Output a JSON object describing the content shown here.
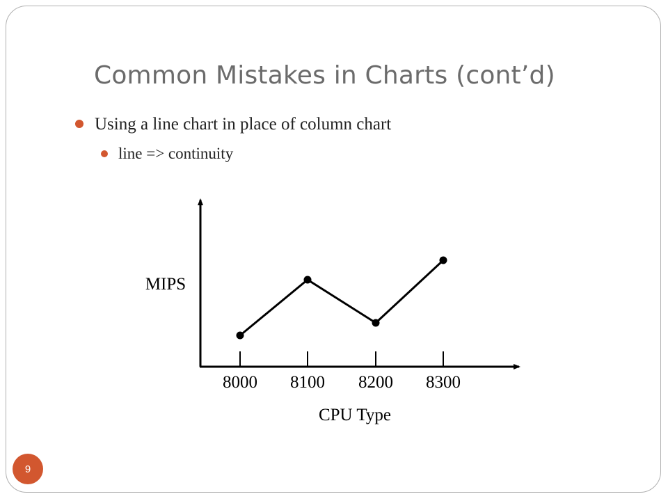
{
  "slide": {
    "title": "Common Mistakes in Charts (cont’d)",
    "bullets": [
      {
        "text": "Using a line chart in place of column chart",
        "level": 1
      },
      {
        "text": "line => continuity",
        "level": 2
      }
    ],
    "slide_number": "9",
    "colors": {
      "accent": "#d2572f",
      "title": "#6b6b6b",
      "frame": "#b0b0b0"
    }
  },
  "chart_data": {
    "type": "line",
    "categories": [
      "8000",
      "8100",
      "8200",
      "8300"
    ],
    "values": [
      1.0,
      3.0,
      1.45,
      3.7
    ],
    "ylabel": "MIPS",
    "xlabel": "CPU Type",
    "ylim": [
      0,
      5
    ],
    "grid": false,
    "y_ticks_shown": false
  }
}
